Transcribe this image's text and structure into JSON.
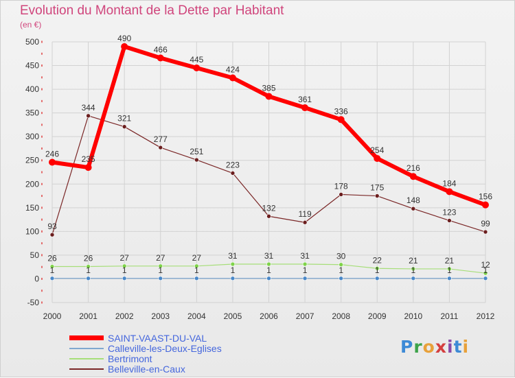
{
  "chart_data": {
    "type": "line",
    "title": "Evolution du Montant de la Dette par Habitant",
    "subtitle": "(en €)",
    "x": [
      "2000",
      "2001",
      "2002",
      "2003",
      "2004",
      "2005",
      "2006",
      "2007",
      "2008",
      "2009",
      "2010",
      "2011",
      "2012"
    ],
    "ylim": [
      -50,
      500
    ],
    "yticks": [
      -50,
      0,
      50,
      100,
      150,
      200,
      250,
      300,
      350,
      400,
      450,
      500
    ],
    "grid": true,
    "legend_position": "bottom-left",
    "series": [
      {
        "name": "SAINT-VAAST-DU-VAL",
        "color": "#ff0000",
        "marker": "#ff0000",
        "width": 6,
        "r": 5,
        "values": [
          246,
          235,
          490,
          466,
          445,
          424,
          385,
          361,
          336,
          254,
          216,
          184,
          156
        ]
      },
      {
        "name": "Calleville-les-Deux-Eglises",
        "color": "#7fa8d0",
        "marker": "#4a88c8",
        "width": 1.2,
        "r": 3,
        "values": [
          1,
          1,
          1,
          1,
          1,
          1,
          1,
          1,
          1,
          1,
          1,
          1,
          1
        ]
      },
      {
        "name": "Bertrimont",
        "color": "#a6de78",
        "marker": "#7fd34a",
        "width": 1.2,
        "r": 3,
        "values": [
          26,
          26,
          27,
          27,
          27,
          31,
          31,
          31,
          30,
          22,
          21,
          21,
          12
        ]
      },
      {
        "name": "Belleville-en-Caux",
        "color": "#7a2626",
        "marker": "#6b1e1e",
        "width": 1.2,
        "r": 3,
        "values": [
          93,
          344,
          321,
          277,
          251,
          223,
          132,
          119,
          178,
          175,
          148,
          123,
          99
        ]
      }
    ]
  },
  "branding": {
    "logo_letters": [
      "P",
      "r",
      "o",
      "x",
      "i",
      "t",
      "i"
    ]
  }
}
